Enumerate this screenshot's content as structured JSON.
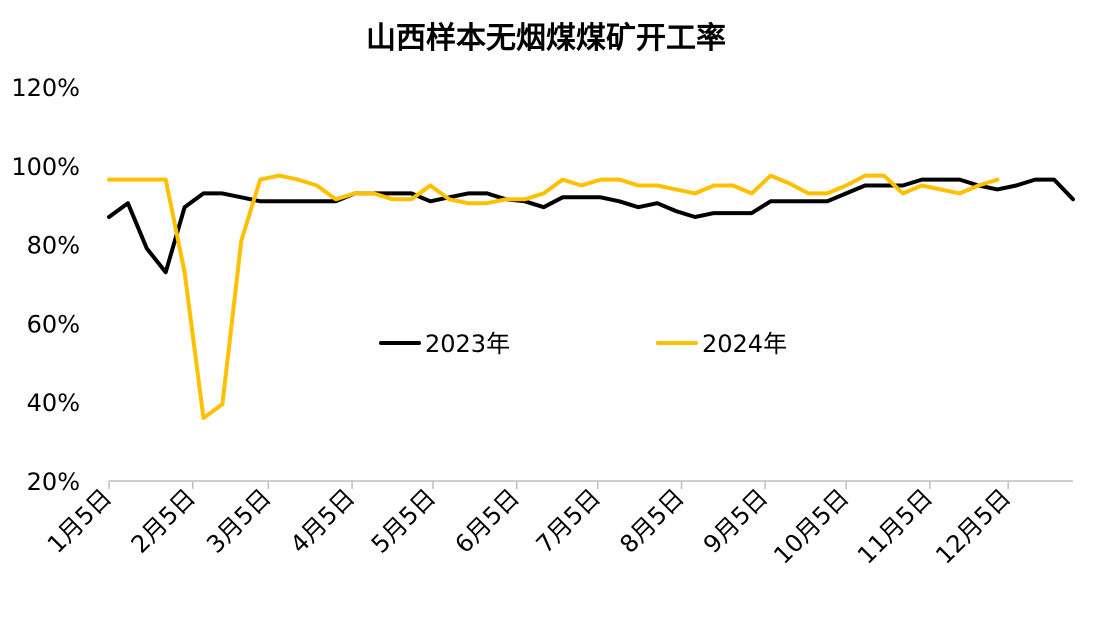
{
  "chart_data": {
    "type": "line",
    "title": "山西样本无烟煤煤矿开工率",
    "xlabel": "",
    "ylabel": "",
    "ylim": [
      20,
      120
    ],
    "yticks": [
      "20%",
      "40%",
      "60%",
      "80%",
      "100%",
      "120%"
    ],
    "ytick_values": [
      20,
      40,
      60,
      80,
      100,
      120
    ],
    "x_tick_labels": [
      "1月5日",
      "2月5日",
      "3月5日",
      "4月5日",
      "5月5日",
      "6月5日",
      "7月5日",
      "8月5日",
      "9月5日",
      "10月5日",
      "11月5日",
      "12月5日"
    ],
    "x_tick_weeks": [
      0,
      4.43,
      8.43,
      12.86,
      17.14,
      21.57,
      25.86,
      30.29,
      34.71,
      39.0,
      43.43,
      47.57
    ],
    "x_max_week": 51,
    "grid": false,
    "legend_position": "center",
    "series": [
      {
        "name": "2023年",
        "color": "#000000",
        "x": [
          0,
          1,
          2,
          3,
          4,
          5,
          6,
          7,
          8,
          9,
          10,
          11,
          12,
          13,
          14,
          15,
          16,
          17,
          18,
          19,
          20,
          21,
          22,
          23,
          24,
          25,
          26,
          27,
          28,
          29,
          30,
          31,
          32,
          33,
          34,
          35,
          36,
          37,
          38,
          39,
          40,
          41,
          42,
          43,
          44,
          45,
          46,
          47,
          48,
          49,
          50,
          51
        ],
        "values": [
          87,
          90.5,
          79,
          73,
          89.5,
          93,
          93,
          92,
          91,
          91,
          91,
          91,
          91,
          93,
          93,
          93,
          93,
          91,
          92,
          93,
          93,
          91.5,
          91,
          89.5,
          92,
          92,
          92,
          91,
          89.5,
          90.5,
          88.5,
          87,
          88,
          88,
          88,
          91,
          91,
          91,
          91,
          93,
          95,
          95,
          95,
          96.5,
          96.5,
          96.5,
          95,
          94,
          95,
          96.5,
          96.5,
          91.5
        ]
      },
      {
        "name": "2024年",
        "color": "#FFC000",
        "x": [
          0,
          1,
          2,
          3,
          4,
          5,
          6,
          7,
          8,
          9,
          10,
          11,
          12,
          13,
          14,
          15,
          16,
          17,
          18,
          19,
          20,
          21,
          22,
          23,
          24,
          25,
          26,
          27,
          28,
          29,
          30,
          31,
          32,
          33,
          34,
          35,
          36,
          37,
          38,
          39,
          40,
          41,
          42,
          43,
          44,
          45,
          46,
          47
        ],
        "values": [
          96.5,
          96.5,
          96.5,
          96.5,
          73,
          36,
          39.5,
          81,
          96.5,
          97.5,
          96.5,
          95,
          91.5,
          93,
          93,
          91.5,
          91.5,
          95,
          91.5,
          90.5,
          90.5,
          91.5,
          91.5,
          93,
          96.5,
          95,
          96.5,
          96.5,
          95,
          95,
          94,
          93,
          95,
          95,
          93,
          97.5,
          95.5,
          93,
          93,
          95,
          97.5,
          97.5,
          93,
          95,
          94,
          93,
          95,
          96.5
        ]
      }
    ]
  }
}
